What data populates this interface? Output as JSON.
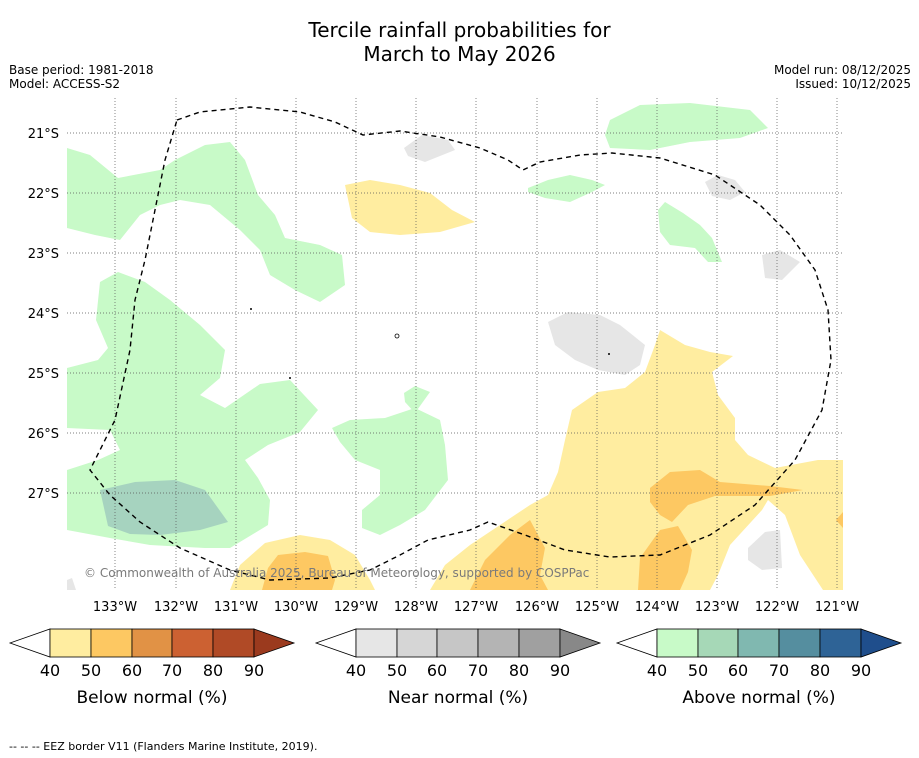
{
  "title_line1": "Tercile rainfall probabilities for",
  "title_line2": "March to May 2026",
  "meta_left": [
    "Base period: 1981-2018",
    "Model: ACCESS-S2"
  ],
  "meta_right": [
    "Model run: 08/12/2025",
    "Issued: 10/12/2025"
  ],
  "map": {
    "lat_labels": [
      "21°S",
      "22°S",
      "23°S",
      "24°S",
      "25°S",
      "26°S",
      "27°S"
    ],
    "lon_labels": [
      "133°W",
      "132°W",
      "131°W",
      "130°W",
      "129°W",
      "128°W",
      "127°W",
      "126°W",
      "125°W",
      "124°W",
      "123°W",
      "122°W",
      "121°W"
    ],
    "copyright": "© Commonwealth of Australia 2025, Bureau of Meteorology, supported by COSPPac"
  },
  "colorbars": [
    {
      "label": "Below normal (%)",
      "ticks": [
        "40",
        "50",
        "60",
        "70",
        "80",
        "90"
      ],
      "colors": [
        "#ffffff",
        "#ffeda0",
        "#fdc862",
        "#e19245",
        "#cc6132",
        "#b04a26",
        "#9b3a1e"
      ]
    },
    {
      "label": "Near normal (%)",
      "ticks": [
        "40",
        "50",
        "60",
        "70",
        "80",
        "90"
      ],
      "colors": [
        "#ffffff",
        "#e6e6e6",
        "#d6d6d6",
        "#c6c6c6",
        "#b4b4b4",
        "#a0a0a0",
        "#888888"
      ]
    },
    {
      "label": "Above normal (%)",
      "ticks": [
        "40",
        "50",
        "60",
        "70",
        "80",
        "90"
      ],
      "colors": [
        "#ffffff",
        "#c8fac8",
        "#a6d8b7",
        "#80b8b0",
        "#558e9f",
        "#2e6396",
        "#1f4e8c"
      ]
    }
  ],
  "footnote": "--  --  -- EEZ border V11 (Flanders Marine Institute, 2019)."
}
